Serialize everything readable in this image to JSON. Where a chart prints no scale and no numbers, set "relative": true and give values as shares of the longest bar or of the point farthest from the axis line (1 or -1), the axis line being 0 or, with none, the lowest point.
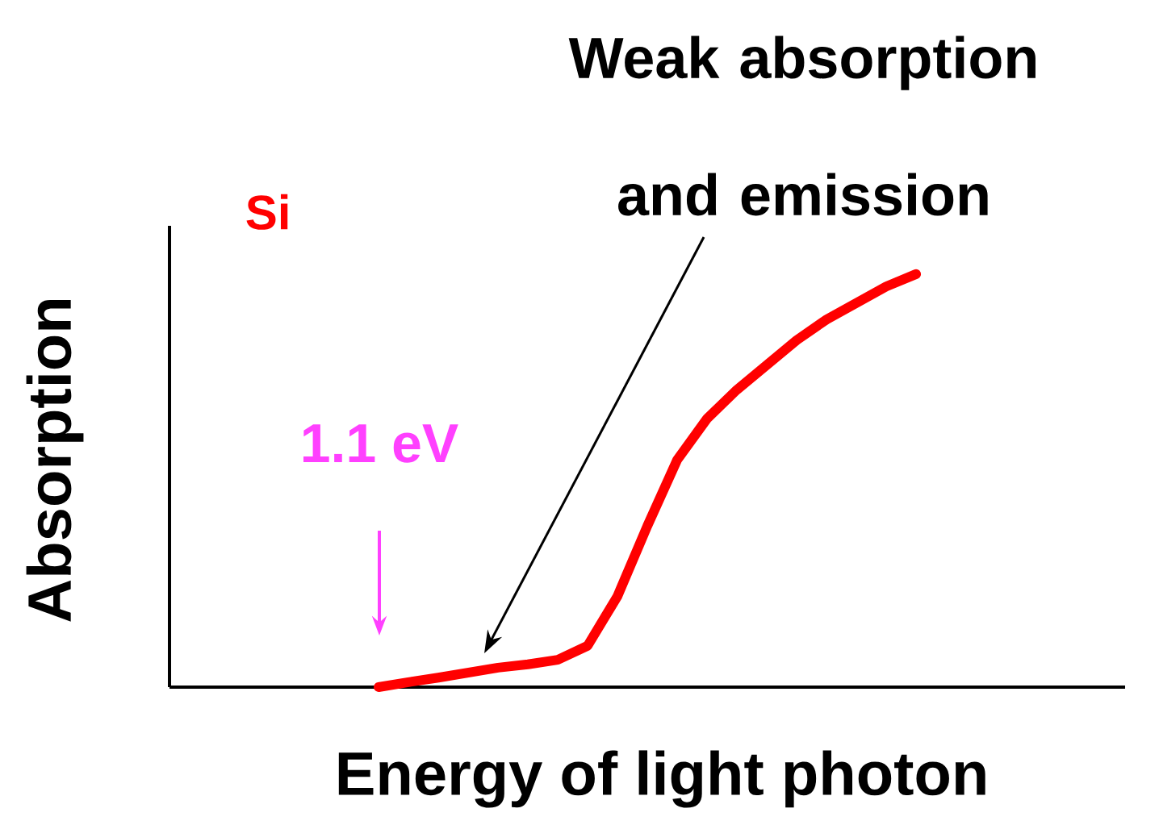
{
  "chart_data": {
    "type": "line",
    "relative": true,
    "xlabel": "Energy of light photon",
    "ylabel": "Absorption",
    "annotations": [
      "Weak absorption and emission",
      "1.1 eV"
    ],
    "categories": [
      null,
      null,
      null,
      null,
      null,
      null,
      null,
      null,
      null,
      null,
      null,
      null,
      null,
      null,
      null,
      null,
      null,
      null,
      null,
      null,
      null,
      null,
      null,
      null,
      null,
      null,
      null,
      null,
      null,
      null,
      null,
      null,
      null
    ],
    "series": [
      {
        "name": "Si",
        "color": "#ff0000",
        "values": [
          null,
          null,
          null,
          null,
          null,
          null,
          null,
          0,
          0.012,
          0.023,
          0.035,
          0.047,
          0.055,
          0.066,
          0.1,
          0.22,
          0.39,
          0.55,
          0.65,
          0.72,
          0.78,
          0.84,
          0.89,
          0.93,
          0.97,
          1.0,
          null,
          null,
          null,
          null,
          null,
          null,
          null
        ]
      }
    ]
  }
}
